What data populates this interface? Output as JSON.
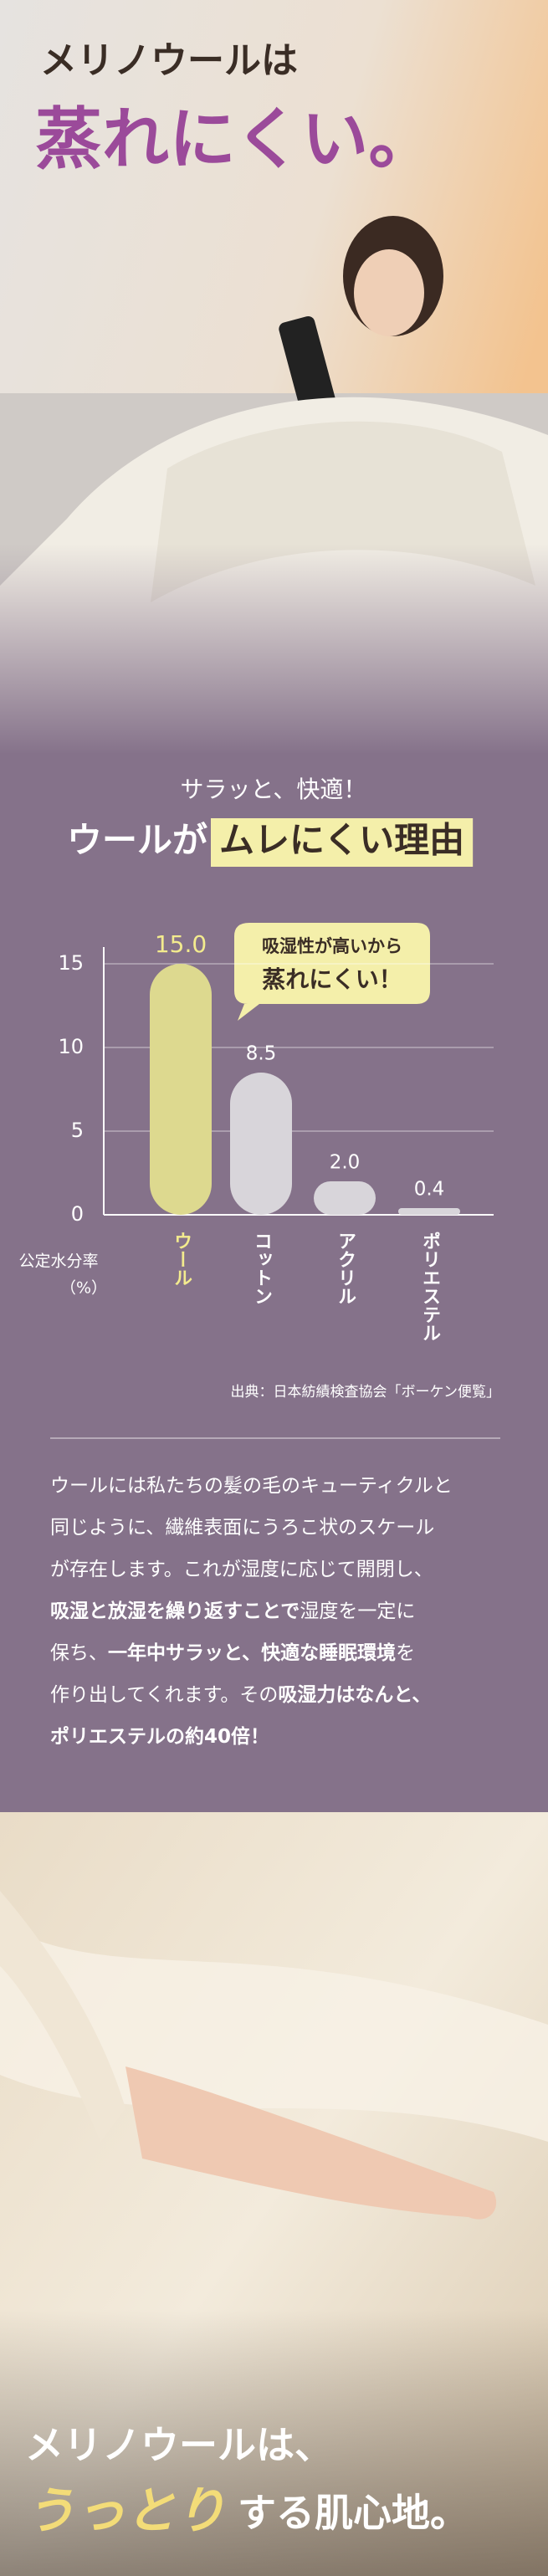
{
  "hero": {
    "line1": "メリノウールは",
    "line2": "蒸れにくい。"
  },
  "reason": {
    "lead": "サラッと、快適！",
    "title": "ウールが",
    "highlight": "ムレにくい理由"
  },
  "chart_data": {
    "type": "bar",
    "ylabel": [
      "公定水分率",
      "（%）"
    ],
    "categories": [
      "ウール",
      "コットン",
      "アクリル",
      "ポリエステル"
    ],
    "values": [
      15,
      8.5,
      2,
      0.4
    ],
    "value_labels": [
      "15.0",
      "8.5",
      "2.0",
      "0.4"
    ],
    "colors": [
      "#ddd98f",
      "#d8d5da",
      "#d8d5da",
      "#d8d5da"
    ],
    "label_colors": [
      "#f3eb8e",
      "#ffffff",
      "#ffffff",
      "#ffffff"
    ],
    "ylim": [
      0,
      16
    ],
    "yticks": [
      0,
      5,
      10,
      15
    ],
    "grid": true,
    "annotation": [
      "吸湿性が高いから",
      "蒸れにくい！"
    ],
    "source": "出典：日本紡績検査協会「ボーケン便覧」"
  },
  "paragraph": [
    [
      {
        "text": "ウールには私たちの髪の毛のキューティクルと",
        "bold": false
      }
    ],
    [
      {
        "text": "同じように、繊維表面にうろこ状のスケール",
        "bold": false
      }
    ],
    [
      {
        "text": "が存在します。これが湿度に応じて開閉し、",
        "bold": false
      }
    ],
    [
      {
        "text": "吸湿と放湿を繰り返すことで",
        "bold": true
      },
      {
        "text": "湿度を一定に",
        "bold": false
      }
    ],
    [
      {
        "text": "保ち、",
        "bold": false
      },
      {
        "text": "一年中サラッと、快適な睡眠環境",
        "bold": true
      },
      {
        "text": "を",
        "bold": false
      }
    ],
    [
      {
        "text": "作り出してくれます。その",
        "bold": false
      },
      {
        "text": "吸湿力はなんと、",
        "bold": true
      }
    ],
    [
      {
        "text": "ポリエステルの約40倍！",
        "bold": true
      }
    ]
  ],
  "footer": {
    "line1": "メリノウールは、",
    "accent": "うっとり",
    "rest": "する肌心地。"
  }
}
